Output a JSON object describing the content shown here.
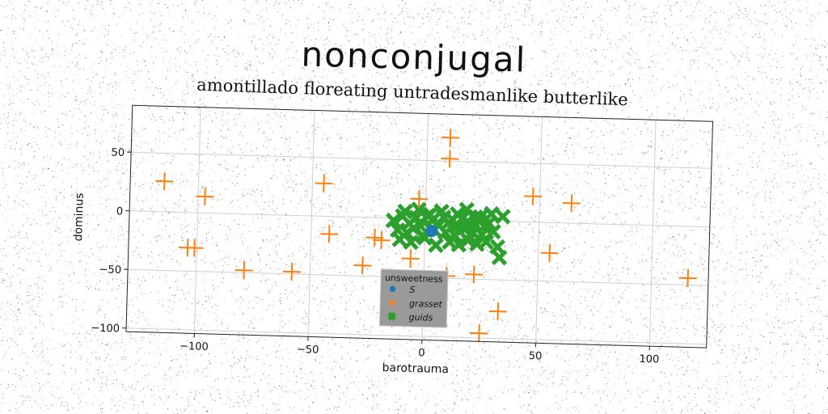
{
  "titles": {
    "main": "nonconjugal",
    "subtitle": "amontillado floreating untradesmanlike butterlike"
  },
  "chart_data": {
    "type": "scatter",
    "xlabel": "barotrauma",
    "ylabel": "dominus",
    "xlim": [
      -130,
      125
    ],
    "ylim": [
      -103,
      90
    ],
    "xticks": [
      -100,
      -50,
      0,
      50,
      100
    ],
    "yticks": [
      -100,
      -50,
      0,
      50
    ],
    "grid": true,
    "legend": {
      "title": "unsweetness",
      "placement": "bottom-center"
    },
    "series": [
      {
        "name": "S",
        "marker": "circle",
        "color": "#1f77b4",
        "x": [
          3
        ],
        "y": [
          -10
        ]
      },
      {
        "name": "grasset",
        "marker": "plus",
        "color": "#ff7f0e",
        "x": [
          -115,
          -97,
          -104,
          -101,
          -79,
          -58,
          -45,
          -42,
          -27,
          -22,
          -19,
          -6,
          -3,
          10,
          10,
          10,
          22,
          25,
          33,
          47,
          55,
          64,
          116
        ],
        "y": [
          26,
          14,
          -30,
          -30,
          -48,
          -48,
          28,
          -15,
          -41,
          -17,
          -19,
          -34,
          17,
          -48,
          70,
          52,
          -46,
          -96,
          -77,
          22,
          -26,
          17,
          -44
        ]
      },
      {
        "name": "guids",
        "marker": "x",
        "color": "#2ca02c",
        "x": [
          -14,
          -10,
          -7,
          -4,
          -2,
          1,
          3,
          6,
          8,
          10,
          12,
          14,
          16,
          18,
          20,
          22,
          24,
          26,
          28,
          -12,
          -8,
          -5,
          -1,
          4,
          9,
          13,
          17,
          21,
          25,
          30,
          -11,
          -6,
          0,
          5,
          11,
          15,
          19,
          23,
          27,
          32,
          -9,
          -3,
          2,
          7,
          14,
          18,
          24,
          29,
          33,
          34
        ],
        "y": [
          -2,
          2,
          -4,
          1,
          -6,
          3,
          -1,
          -5,
          2,
          -3,
          0,
          -6,
          1,
          -2,
          -4,
          3,
          -1,
          -5,
          -2,
          -10,
          -12,
          -8,
          -14,
          -9,
          -11,
          -13,
          -7,
          -10,
          -12,
          -9,
          -18,
          -20,
          -16,
          -22,
          -19,
          -21,
          -17,
          -20,
          -18,
          -22,
          6,
          8,
          4,
          7,
          5,
          9,
          3,
          6,
          -31,
          4
        ]
      }
    ]
  }
}
